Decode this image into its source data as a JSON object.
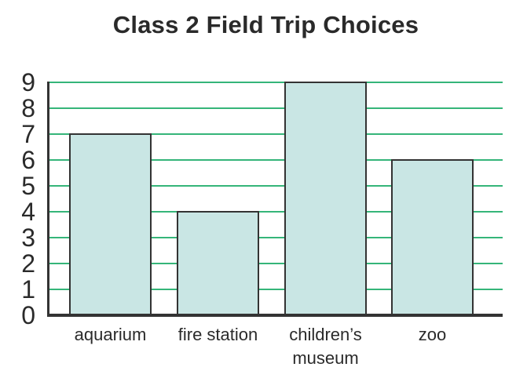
{
  "chart_data": {
    "type": "bar",
    "title": "Class 2 Field Trip Choices",
    "categories": [
      "aquarium",
      "fire station",
      "children’s museum",
      "zoo"
    ],
    "category_display_lines": [
      [
        "aquarium"
      ],
      [
        "fire station"
      ],
      [
        "children’s",
        "museum"
      ],
      [
        "zoo"
      ]
    ],
    "values": [
      7,
      4,
      9,
      6
    ],
    "xlabel": "",
    "ylabel": "",
    "ylim": [
      0,
      9
    ],
    "y_ticks": [
      0,
      1,
      2,
      3,
      4,
      5,
      6,
      7,
      8,
      9
    ],
    "grid": "horizontal gridlines at every integer",
    "legend_position": "none",
    "colors": {
      "bar_fill": "#c9e6e4",
      "bar_border": "#333333",
      "gridline": "#35b579",
      "axis": "#333333",
      "text": "#2a2a2a",
      "background": "#ffffff"
    }
  }
}
